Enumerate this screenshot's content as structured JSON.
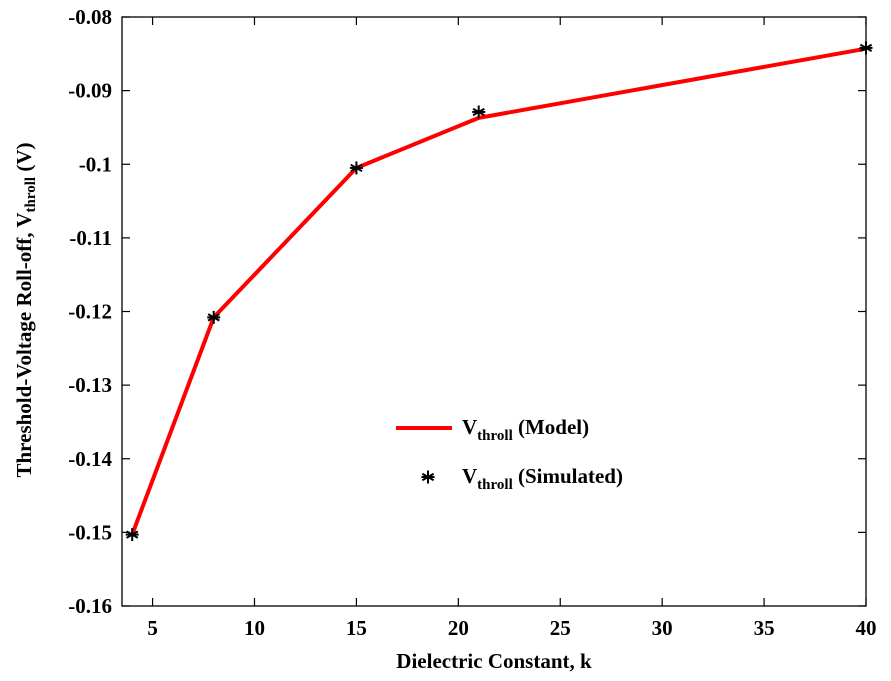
{
  "chart_data": {
    "type": "line",
    "title": "",
    "xlabel": "Dielectric Constant, k",
    "ylabel": {
      "main": "Threshold-Voltage Roll-off, V",
      "sub": "throll",
      "tail": " (V)"
    },
    "xlim": [
      3.5,
      40
    ],
    "ylim": [
      -0.16,
      -0.08
    ],
    "xticks": [
      5,
      10,
      15,
      20,
      25,
      30,
      35,
      40
    ],
    "yticks": [
      -0.16,
      -0.15,
      -0.14,
      -0.13,
      -0.12,
      -0.11,
      -0.1,
      -0.09,
      -0.08
    ],
    "xtick_labels": [
      "5",
      "10",
      "15",
      "20",
      "25",
      "30",
      "35",
      "40"
    ],
    "ytick_labels": [
      "-0.16",
      "-0.15",
      "-0.14",
      "-0.13",
      "-0.12",
      "-0.11",
      "-0.1",
      "-0.09",
      "-0.08"
    ],
    "grid": false,
    "legend_position": "center-right",
    "series": [
      {
        "key": "model",
        "name": {
          "main": "V",
          "sub": "throll",
          "tail": " (Model)"
        },
        "style": "line",
        "color": "#ff0000",
        "x": [
          4,
          8,
          15,
          21,
          40
        ],
        "y": [
          -0.1503,
          -0.1208,
          -0.1005,
          -0.0937,
          -0.0843
        ]
      },
      {
        "key": "simulated",
        "name": {
          "main": "V",
          "sub": "throll",
          "tail": " (Simulated)"
        },
        "style": "marker",
        "marker": "asterisk",
        "color": "#000000",
        "x": [
          4,
          8,
          15,
          21,
          40
        ],
        "y": [
          -0.1503,
          -0.1208,
          -0.1005,
          -0.0929,
          -0.0842
        ]
      }
    ]
  }
}
